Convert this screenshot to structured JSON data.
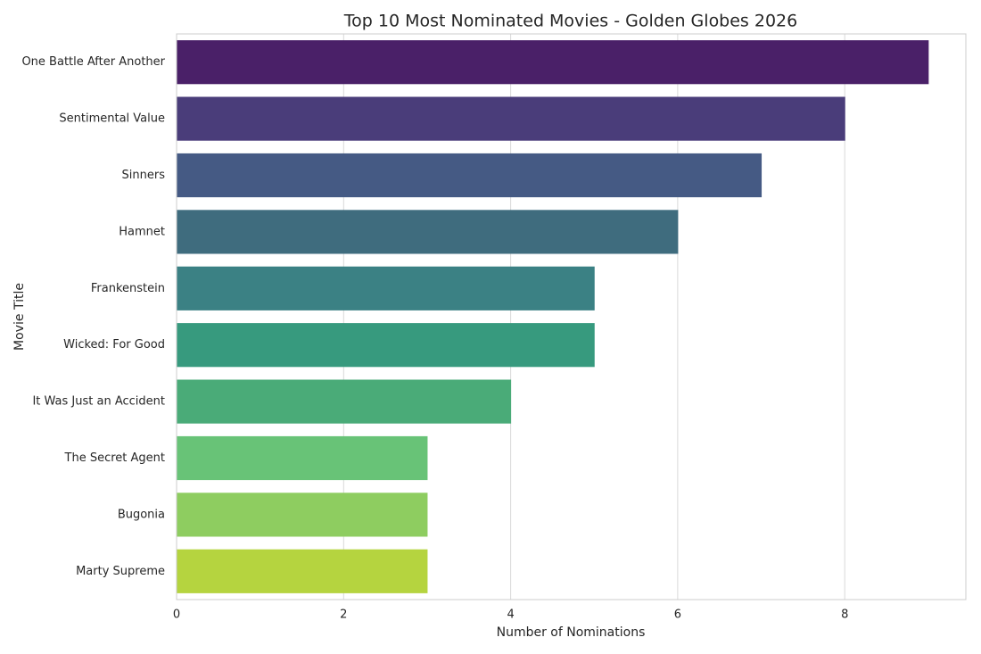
{
  "chart_data": {
    "type": "bar",
    "orientation": "horizontal",
    "title": "Top 10 Most Nominated Movies - Golden Globes 2026",
    "xlabel": "Number of Nominations",
    "ylabel": "Movie Title",
    "categories": [
      "One Battle After Another",
      "Sentimental Value",
      "Sinners",
      "Hamnet",
      "Frankenstein",
      "Wicked: For Good",
      "It Was Just an Accident",
      "The Secret Agent",
      "Bugonia",
      "Marty Supreme"
    ],
    "values": [
      9,
      8,
      7,
      6,
      5,
      5,
      4,
      3,
      3,
      3
    ],
    "colors": [
      "#4a2068",
      "#4a3d7a",
      "#455a84",
      "#3f6c7e",
      "#3b8184",
      "#379a7e",
      "#4aab78",
      "#68c377",
      "#8ecd60",
      "#b5d43f"
    ],
    "xlim": [
      0,
      9.45
    ],
    "xticks": [
      0,
      2,
      4,
      6,
      8
    ],
    "grid": true
  }
}
